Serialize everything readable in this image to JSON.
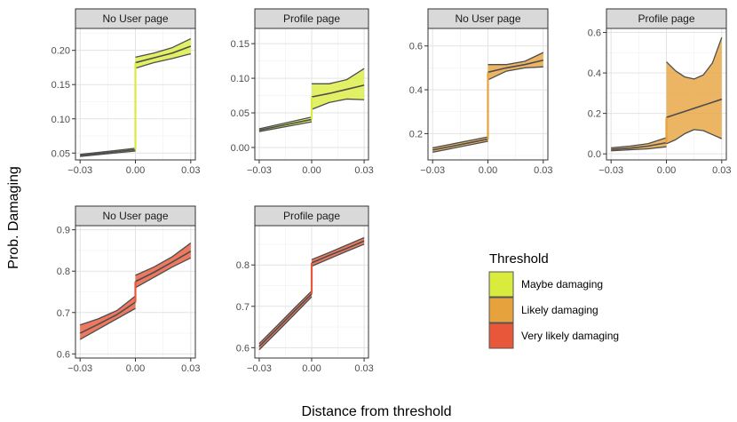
{
  "chart_data": {
    "type": "line",
    "xlabel": "Distance from threshold",
    "ylabel": "Prob. Damaging",
    "legend": {
      "title": "Threshold",
      "position": "right",
      "entries": [
        {
          "label": "Maybe damaging",
          "fill": "#d9ec3e"
        },
        {
          "label": "Likely damaging",
          "fill": "#e6a33d"
        },
        {
          "label": "Very likely damaging",
          "fill": "#e8573a"
        }
      ]
    },
    "line_color": "#4d4d4d",
    "grid": true,
    "panels": [
      {
        "strip": "No User page",
        "threshold": "Maybe damaging",
        "row": 0,
        "col": 0,
        "xlim": [
          -0.0325,
          0.0325
        ],
        "ylim": [
          0.04,
          0.232
        ],
        "xticks": [
          -0.03,
          0.0,
          0.03
        ],
        "xtick_labels": [
          "−0.03",
          "0.00",
          "0.03"
        ],
        "yticks": [
          0.05,
          0.1,
          0.15,
          0.2
        ],
        "ytick_labels": [
          "0.05",
          "0.10",
          "0.15",
          "0.20"
        ],
        "left": {
          "x": [
            -0.03,
            0.0
          ],
          "upper": [
            0.048,
            0.057
          ],
          "lower": [
            0.045,
            0.053
          ],
          "fit": [
            0.0465,
            0.055
          ]
        },
        "right": {
          "x": [
            0.0,
            0.01,
            0.02,
            0.03
          ],
          "upper": [
            0.19,
            0.196,
            0.204,
            0.217
          ],
          "lower": [
            0.174,
            0.182,
            0.188,
            0.195
          ],
          "fit": [
            0.182,
            0.189,
            0.196,
            0.206
          ]
        }
      },
      {
        "strip": "Profile page",
        "threshold": "Maybe damaging",
        "row": 0,
        "col": 1,
        "xlim": [
          -0.0325,
          0.0325
        ],
        "ylim": [
          -0.018,
          0.172
        ],
        "xticks": [
          -0.03,
          0.0,
          0.03
        ],
        "xtick_labels": [
          "−0.03",
          "0.00",
          "0.03"
        ],
        "yticks": [
          0.0,
          0.05,
          0.1,
          0.15
        ],
        "ytick_labels": [
          "0.00",
          "0.05",
          "0.10",
          "0.15"
        ],
        "left": {
          "x": [
            -0.03,
            0.0
          ],
          "upper": [
            0.027,
            0.044
          ],
          "lower": [
            0.023,
            0.037
          ],
          "fit": [
            0.025,
            0.0405
          ]
        },
        "right": {
          "x": [
            0.0,
            0.01,
            0.02,
            0.03
          ],
          "upper": [
            0.092,
            0.092,
            0.098,
            0.114
          ],
          "lower": [
            0.055,
            0.065,
            0.07,
            0.069
          ],
          "fit": [
            0.073,
            0.078,
            0.084,
            0.09
          ]
        }
      },
      {
        "strip": "No User page",
        "threshold": "Likely damaging",
        "row": 0,
        "col": 2,
        "xlim": [
          -0.0325,
          0.0325
        ],
        "ylim": [
          0.08,
          0.68
        ],
        "xticks": [
          -0.03,
          0.0,
          0.03
        ],
        "xtick_labels": [
          "−0.03",
          "0.00",
          "0.03"
        ],
        "yticks": [
          0.2,
          0.4,
          0.6
        ],
        "ytick_labels": [
          "0.2",
          "0.4",
          "0.6"
        ],
        "left": {
          "x": [
            -0.03,
            0.0
          ],
          "upper": [
            0.135,
            0.185
          ],
          "lower": [
            0.115,
            0.165
          ],
          "fit": [
            0.125,
            0.175
          ]
        },
        "right": {
          "x": [
            0.0,
            0.01,
            0.02,
            0.03
          ],
          "upper": [
            0.515,
            0.515,
            0.53,
            0.57
          ],
          "lower": [
            0.445,
            0.485,
            0.5,
            0.505
          ],
          "fit": [
            0.48,
            0.5,
            0.515,
            0.535
          ]
        }
      },
      {
        "strip": "Profile page",
        "threshold": "Likely damaging",
        "row": 0,
        "col": 3,
        "xlim": [
          -0.0325,
          0.0325
        ],
        "ylim": [
          -0.03,
          0.62
        ],
        "xticks": [
          -0.03,
          0.0,
          0.03
        ],
        "xtick_labels": [
          "−0.03",
          "0.00",
          "0.03"
        ],
        "yticks": [
          0.0,
          0.2,
          0.4,
          0.6
        ],
        "ytick_labels": [
          "0.0",
          "0.2",
          "0.4",
          "0.6"
        ],
        "left": {
          "x": [
            -0.03,
            -0.02,
            -0.01,
            0.0
          ],
          "upper": [
            0.03,
            0.038,
            0.05,
            0.08
          ],
          "lower": [
            0.015,
            0.02,
            0.025,
            0.035
          ],
          "fit": [
            0.022,
            0.028,
            0.038,
            0.055
          ]
        },
        "right": {
          "x": [
            0.0,
            0.005,
            0.01,
            0.015,
            0.02,
            0.025,
            0.03
          ],
          "upper": [
            0.455,
            0.41,
            0.38,
            0.37,
            0.39,
            0.45,
            0.575
          ],
          "lower": [
            0.05,
            0.07,
            0.1,
            0.12,
            0.115,
            0.095,
            0.075
          ],
          "fit": [
            0.18,
            0.195,
            0.21,
            0.225,
            0.24,
            0.255,
            0.27
          ]
        }
      },
      {
        "strip": "No User page",
        "threshold": "Very likely damaging",
        "row": 1,
        "col": 0,
        "xlim": [
          -0.0325,
          0.0325
        ],
        "ylim": [
          0.59,
          0.91
        ],
        "xticks": [
          -0.03,
          0.0,
          0.03
        ],
        "xtick_labels": [
          "−0.03",
          "0.00",
          "0.03"
        ],
        "yticks": [
          0.6,
          0.7,
          0.8,
          0.9
        ],
        "ytick_labels": [
          "0.6",
          "0.7",
          "0.8",
          "0.9"
        ],
        "left": {
          "x": [
            -0.03,
            -0.02,
            -0.01,
            0.0
          ],
          "upper": [
            0.67,
            0.685,
            0.705,
            0.74
          ],
          "lower": [
            0.635,
            0.66,
            0.685,
            0.71
          ],
          "fit": [
            0.65,
            0.672,
            0.695,
            0.725
          ]
        },
        "right": {
          "x": [
            0.0,
            0.01,
            0.02,
            0.03
          ],
          "upper": [
            0.79,
            0.81,
            0.835,
            0.868
          ],
          "lower": [
            0.76,
            0.785,
            0.81,
            0.832
          ],
          "fit": [
            0.775,
            0.797,
            0.822,
            0.848
          ]
        }
      },
      {
        "strip": "Profile page",
        "threshold": "Very likely damaging",
        "row": 1,
        "col": 1,
        "xlim": [
          -0.0325,
          0.0325
        ],
        "ylim": [
          0.575,
          0.895
        ],
        "xticks": [
          -0.03,
          0.0,
          0.03
        ],
        "xtick_labels": [
          "−0.03",
          "0.00",
          "0.03"
        ],
        "yticks": [
          0.6,
          0.7,
          0.8
        ],
        "ytick_labels": [
          "0.6",
          "0.7",
          "0.8"
        ],
        "left": {
          "x": [
            -0.03,
            -0.02,
            -0.01,
            0.0
          ],
          "upper": [
            0.61,
            0.652,
            0.695,
            0.737
          ],
          "lower": [
            0.595,
            0.637,
            0.68,
            0.723
          ],
          "fit": [
            0.603,
            0.645,
            0.688,
            0.73
          ]
        },
        "right": {
          "x": [
            0.0,
            0.01,
            0.02,
            0.03
          ],
          "upper": [
            0.813,
            0.83,
            0.848,
            0.866
          ],
          "lower": [
            0.797,
            0.815,
            0.833,
            0.85
          ],
          "fit": [
            0.805,
            0.823,
            0.84,
            0.858
          ]
        }
      }
    ]
  }
}
